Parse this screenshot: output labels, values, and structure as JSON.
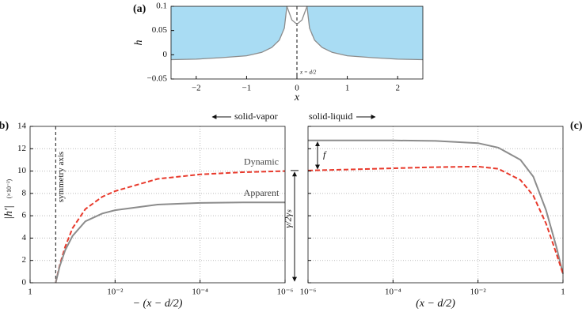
{
  "chart_data": [
    {
      "type": "area-line",
      "panel_label": "(a)",
      "xlabel": "x",
      "ylabel": "h",
      "xlim": [
        -2.5,
        2.5
      ],
      "ylim": [
        -0.05,
        0.1
      ],
      "xticks": [
        {
          "value": -2,
          "label": "−2"
        },
        {
          "value": -1,
          "label": "−1"
        },
        0,
        1,
        2
      ],
      "yticks": [
        {
          "value": -0.05,
          "label": "−0.05"
        },
        0,
        0.05,
        0.1
      ],
      "fill_color": "#a9dcf3",
      "line_color": "#8c8c8c",
      "vline": {
        "x": 0,
        "label": "x = d/2"
      },
      "series": [
        {
          "fill": true,
          "x": [
            -2.5,
            -2,
            -1.5,
            -1,
            -0.7,
            -0.5,
            -0.35,
            -0.25,
            -0.2
          ],
          "values": [
            -0.01,
            -0.009,
            -0.006,
            -0.002,
            0.005,
            0.015,
            0.03,
            0.055,
            0.1
          ]
        },
        {
          "fill": false,
          "x": [
            -0.2,
            -0.1,
            0,
            0.1,
            0.2
          ],
          "values": [
            0.1,
            0.072,
            0.063,
            0.072,
            0.1
          ]
        },
        {
          "fill": true,
          "x": [
            0.2,
            0.25,
            0.35,
            0.5,
            0.7,
            1,
            1.5,
            2,
            2.5
          ],
          "values": [
            0.1,
            0.055,
            0.03,
            0.015,
            0.005,
            -0.002,
            -0.006,
            -0.009,
            -0.01
          ]
        }
      ]
    },
    {
      "type": "line",
      "panel_label": "(b)",
      "header": "solid-vapor",
      "xlabel": "− (x − d/2)",
      "ylabel": "|h′|",
      "ylabel_unit": "(×10⁻²)",
      "xlog": true,
      "xlim": [
        1,
        1e-06
      ],
      "ylim": [
        0,
        14
      ],
      "grid": true,
      "xticks": [
        1,
        {
          "value": 0.01,
          "label": "10⁻²"
        },
        {
          "value": 0.0001,
          "label": "10⁻⁴"
        },
        {
          "value": 1e-06,
          "label": "10⁻⁶"
        }
      ],
      "yticks": [
        0,
        2,
        4,
        6,
        8,
        10,
        12,
        14
      ],
      "vline": {
        "x": 0.25,
        "label": "symmetry axis"
      },
      "series": [
        {
          "name": "Dynamic",
          "color": "#e8392b",
          "dash": true,
          "x": [
            0.25,
            0.2,
            0.15,
            0.1,
            0.05,
            0.02,
            0.01,
            0.001,
            0.0001,
            1e-05,
            1e-06
          ],
          "values": [
            0,
            1.6,
            3.2,
            4.9,
            6.6,
            7.7,
            8.2,
            9.3,
            9.7,
            9.9,
            10.0
          ]
        },
        {
          "name": "Apparent",
          "color": "#8c8c8c",
          "dash": false,
          "x": [
            0.25,
            0.2,
            0.15,
            0.1,
            0.05,
            0.02,
            0.01,
            0.001,
            0.0001,
            1e-05,
            1e-06
          ],
          "values": [
            0,
            1.5,
            2.9,
            4.2,
            5.5,
            6.2,
            6.5,
            7.0,
            7.15,
            7.2,
            7.2
          ]
        }
      ]
    },
    {
      "type": "line",
      "panel_label": "(c)",
      "header": "solid-liquid",
      "xlabel": "(x − d/2)",
      "offset_label": "f",
      "ratio_label": "γ/2γₛ",
      "xlog": true,
      "xlim": [
        1e-06,
        1
      ],
      "ylim": [
        0,
        14
      ],
      "grid": true,
      "show_ytick_labels": false,
      "xticks": [
        {
          "value": 1e-06,
          "label": "10⁻⁶"
        },
        {
          "value": 0.0001,
          "label": "10⁻⁴"
        },
        {
          "value": 0.01,
          "label": "10⁻²"
        },
        1
      ],
      "yticks": [
        0,
        2,
        4,
        6,
        8,
        10,
        12,
        14
      ],
      "series": [
        {
          "name": "Apparent",
          "color": "#8c8c8c",
          "dash": false,
          "x": [
            1e-06,
            1e-05,
            0.0001,
            0.001,
            0.01,
            0.03,
            0.1,
            0.2,
            0.4,
            0.7,
            1
          ],
          "values": [
            12.75,
            12.75,
            12.74,
            12.7,
            12.5,
            12.1,
            11.0,
            9.5,
            6.5,
            3.2,
            0.8
          ]
        },
        {
          "name": "Dynamic",
          "color": "#e8392b",
          "dash": true,
          "x": [
            1e-06,
            1e-05,
            0.0001,
            0.001,
            0.01,
            0.03,
            0.1,
            0.2,
            0.4,
            0.7,
            1
          ],
          "values": [
            10.05,
            10.15,
            10.25,
            10.35,
            10.4,
            10.2,
            9.2,
            7.8,
            5.3,
            2.6,
            0.8
          ]
        }
      ]
    }
  ]
}
